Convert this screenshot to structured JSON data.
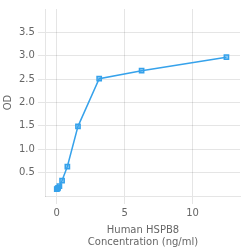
{
  "chart_data": {
    "type": "line",
    "x": [
      0.0,
      0.049,
      0.098,
      0.195,
      0.391,
      0.781,
      1.563,
      3.125,
      6.25,
      12.5
    ],
    "values": [
      0.147,
      0.158,
      0.175,
      0.21,
      0.33,
      0.63,
      1.49,
      2.51,
      2.68,
      2.97
    ],
    "marker": "square",
    "xlabel": [
      "Human HSPB8",
      "Concentration (ng/ml)"
    ],
    "ylabel": "OD",
    "xlim": [
      -0.8,
      13.5
    ],
    "xticks": [
      0,
      5,
      10
    ],
    "ylim": [
      0,
      4.0
    ],
    "yticks": [
      0.5,
      {
        "value": 1.0,
        "label": "1.0"
      },
      1.5,
      {
        "value": 2.0,
        "label": "2.0"
      },
      2.5,
      {
        "value": 3.0,
        "label": "3.0"
      },
      3.5
    ],
    "grid": true
  }
}
